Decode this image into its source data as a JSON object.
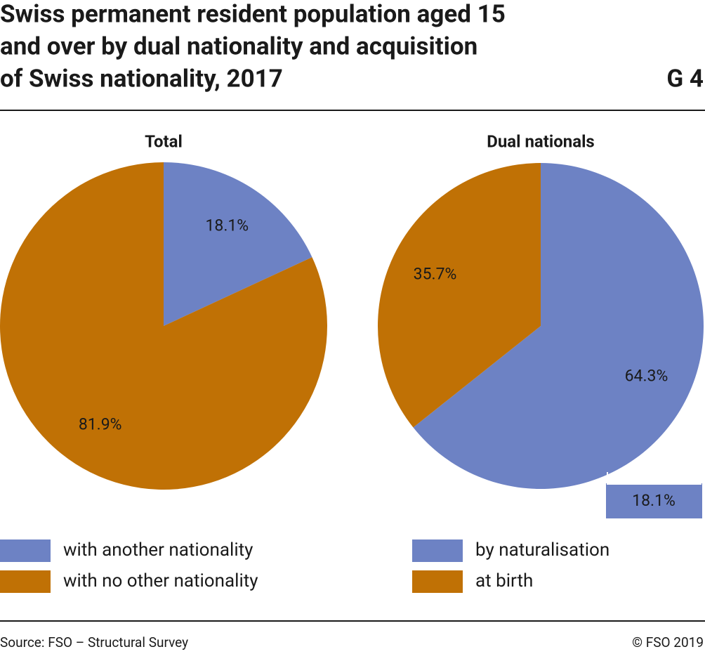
{
  "header": {
    "title": [
      "Swiss permanent resident population aged 15",
      "and over by dual nationality and acquisition",
      "of Swiss nationality, 2017"
    ],
    "figure": "G 4"
  },
  "chart_data": [
    {
      "type": "pie",
      "title": "Total",
      "categories": [
        "with another nationality",
        "with no other nationality"
      ],
      "values": [
        18.1,
        81.9
      ],
      "value_labels": [
        "18.1%",
        "81.9%"
      ],
      "colors": [
        "#6d82c4",
        "#c07105"
      ]
    },
    {
      "type": "pie",
      "title": "Dual nationals",
      "categories": [
        "by naturalisation",
        "at birth"
      ],
      "values": [
        64.3,
        35.7
      ],
      "value_labels": [
        "64.3%",
        "35.7%"
      ],
      "colors": [
        "#6d82c4",
        "#c07105"
      ],
      "annotation": "18.1%"
    }
  ],
  "footer": {
    "source": "Source: FSO – Structural Survey",
    "copyright": "© FSO 2019"
  }
}
